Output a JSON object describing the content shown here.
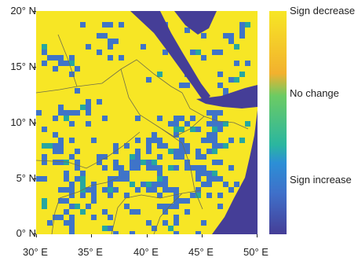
{
  "map": {
    "type": "heatmap",
    "lon_range": [
      30,
      50
    ],
    "lat_range": [
      0,
      20
    ],
    "x_ticks": [
      "30° E",
      "35° E",
      "40° E",
      "45° E",
      "50° E"
    ],
    "y_ticks": [
      "20° N",
      "15° N",
      "10° N",
      "5° N",
      "0° N"
    ],
    "colorbar": {
      "labels": {
        "top": "Sign decrease",
        "middle": "No change",
        "bottom": "Sign increase"
      },
      "colors": [
        "#F7E625",
        "#F2B12E",
        "#6CCB63",
        "#2AB6A0",
        "#2C8FD6",
        "#3F6FC9",
        "#453E97"
      ]
    },
    "colors": {
      "decrease": "#F7E625",
      "increase": "#3F74C8",
      "sea": "#453E97",
      "mixed": "#26A7A0",
      "border": "#6E6E4C"
    }
  }
}
